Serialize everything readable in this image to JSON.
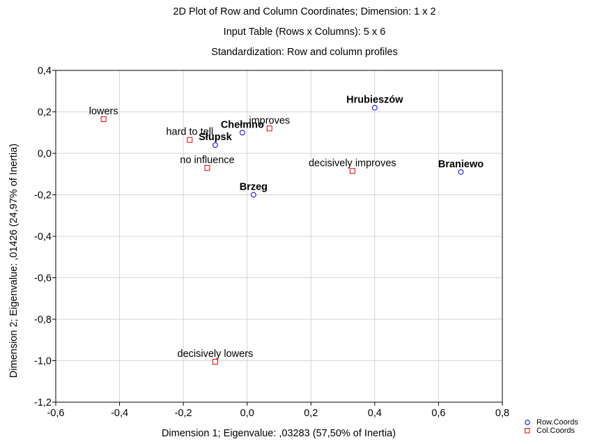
{
  "chart_data": {
    "type": "scatter",
    "title": "2D Plot of Row and Column Coordinates; Dimension:  1 x  2",
    "subtitle_1": "Input Table (Rows x Columns): 5 x 6",
    "subtitle_2": "Standardization: Row and column profiles",
    "xlabel": "Dimension 1; Eigenvalue: ,03283 (57,50% of Inertia)",
    "ylabel": "Dimension 2; Eigenvalue: ,01426 (24,97% of Inertia)",
    "xlim": [
      -0.6,
      0.8
    ],
    "ylim": [
      -1.2,
      0.4
    ],
    "xticks": [
      -0.6,
      -0.4,
      -0.2,
      0.0,
      0.2,
      0.4,
      0.6,
      0.8
    ],
    "xtick_labels": [
      "-0,6",
      "-0,4",
      "-0,2",
      "0,0",
      "0,2",
      "0,4",
      "0,6",
      "0,8"
    ],
    "yticks": [
      0.4,
      0.2,
      0.0,
      -0.2,
      -0.4,
      -0.6,
      -0.8,
      -1.0,
      -1.2
    ],
    "ytick_labels": [
      "0,4",
      "0,2",
      "0,0",
      "-0,2",
      "-0,4",
      "-0,6",
      "-0,8",
      "-1,0",
      "-1,2"
    ],
    "grid": true,
    "legend_position": "bottom-right",
    "series": [
      {
        "name": "Row.Coords",
        "marker": "circle",
        "color": "#0000cc",
        "bold_labels": true,
        "points": [
          {
            "label": "Hrubieszów",
            "x": 0.4,
            "y": 0.22
          },
          {
            "label": "Chełmno",
            "x": -0.015,
            "y": 0.1
          },
          {
            "label": "Słupsk",
            "x": -0.1,
            "y": 0.04
          },
          {
            "label": "Brzeg",
            "x": 0.02,
            "y": -0.2
          },
          {
            "label": "Braniewo",
            "x": 0.67,
            "y": -0.09
          }
        ]
      },
      {
        "name": "Col.Coords",
        "marker": "square",
        "color": "#dd0000",
        "bold_labels": false,
        "points": [
          {
            "label": "lowers",
            "x": -0.45,
            "y": 0.165
          },
          {
            "label": "improves",
            "x": 0.07,
            "y": 0.12
          },
          {
            "label": "hard to tell",
            "x": -0.18,
            "y": 0.065
          },
          {
            "label": "no influence",
            "x": -0.125,
            "y": -0.07
          },
          {
            "label": "decisively improves",
            "x": 0.33,
            "y": -0.085
          },
          {
            "label": "decisively lowers",
            "x": -0.1,
            "y": -1.005
          }
        ]
      }
    ]
  }
}
